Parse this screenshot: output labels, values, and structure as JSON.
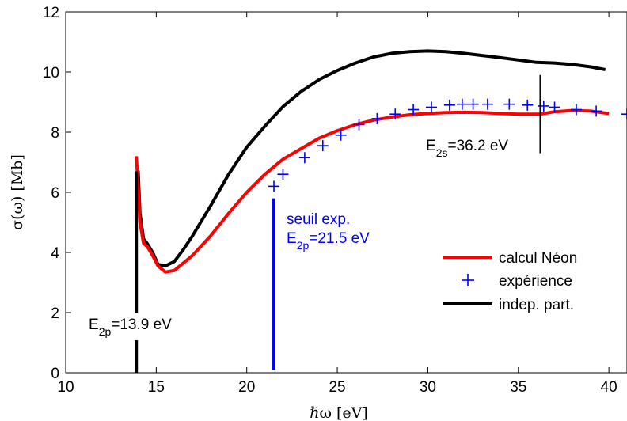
{
  "chart_data": {
    "type": "line",
    "title": "",
    "xlabel": "ℏω [eV]",
    "ylabel": "σ(ω) [Mb]",
    "xlim": [
      10,
      41
    ],
    "ylim": [
      0,
      12
    ],
    "xticks": [
      10,
      15,
      20,
      25,
      30,
      35,
      40
    ],
    "yticks": [
      0,
      2,
      4,
      6,
      8,
      10,
      12
    ],
    "grid": false,
    "legend_position": "right",
    "series": [
      {
        "name": "calcul Néon",
        "style": "line",
        "color": "#ff0000",
        "x": [
          13.9,
          14.0,
          14.1,
          14.3,
          14.5,
          14.8,
          15.1,
          15.5,
          16.0,
          17.0,
          18.0,
          19.0,
          20.0,
          21.0,
          22.0,
          23.0,
          24.0,
          25.0,
          26.0,
          27.0,
          28.0,
          29.0,
          30.0,
          31.0,
          32.0,
          33.0,
          34.0,
          35.0,
          36.2,
          37.0,
          38.0,
          39.0,
          40.0
        ],
        "y": [
          7.2,
          6.2,
          5.0,
          4.3,
          4.2,
          3.9,
          3.55,
          3.35,
          3.4,
          3.9,
          4.55,
          5.3,
          6.0,
          6.6,
          7.1,
          7.45,
          7.8,
          8.05,
          8.25,
          8.4,
          8.5,
          8.58,
          8.62,
          8.65,
          8.66,
          8.65,
          8.62,
          8.6,
          8.6,
          8.68,
          8.72,
          8.7,
          8.62
        ]
      },
      {
        "name": "expérience",
        "style": "marker",
        "marker": "+",
        "color": "#0000ff",
        "x": [
          21.5,
          22.0,
          23.2,
          24.2,
          25.2,
          26.2,
          27.2,
          28.2,
          29.2,
          30.2,
          31.2,
          31.9,
          32.5,
          33.3,
          34.5,
          35.5,
          36.4,
          37.0,
          38.2,
          39.3,
          41.0
        ],
        "y": [
          6.2,
          6.6,
          7.15,
          7.55,
          7.9,
          8.25,
          8.45,
          8.6,
          8.75,
          8.83,
          8.9,
          8.93,
          8.93,
          8.93,
          8.93,
          8.9,
          8.87,
          8.83,
          8.75,
          8.7,
          8.6
        ]
      },
      {
        "name": "indep. part.",
        "style": "line",
        "color": "#000000",
        "x": [
          13.9,
          14.0,
          14.1,
          14.3,
          14.5,
          14.8,
          15.1,
          15.5,
          16.0,
          16.5,
          17.0,
          18.0,
          19.0,
          20.0,
          21.0,
          22.0,
          23.0,
          24.0,
          25.0,
          26.0,
          27.0,
          28.0,
          29.0,
          30.0,
          31.0,
          32.0,
          33.0,
          34.0,
          35.0,
          36.0,
          37.0,
          38.0,
          39.0,
          39.8
        ],
        "y": [
          6.0,
          6.7,
          5.3,
          4.45,
          4.3,
          4.0,
          3.6,
          3.55,
          3.7,
          4.1,
          4.55,
          5.55,
          6.6,
          7.5,
          8.2,
          8.85,
          9.35,
          9.75,
          10.05,
          10.3,
          10.5,
          10.62,
          10.68,
          10.7,
          10.68,
          10.62,
          10.55,
          10.48,
          10.4,
          10.32,
          10.3,
          10.25,
          10.17,
          10.08
        ]
      }
    ],
    "annotations": [
      {
        "id": "e2p-calc",
        "lines": [
          "E",
          "2p",
          "=13.9 eV"
        ],
        "color": "#000000",
        "x": 13.9,
        "y_from": 0,
        "y_to": 6.7
      },
      {
        "id": "seuil",
        "text": "seuil exp.",
        "lines": [
          "E",
          "2p",
          "=21.5 eV"
        ],
        "color": "#0000ff",
        "x": 21.5,
        "y_from": 0.1,
        "y_to": 5.8
      },
      {
        "id": "e2s",
        "lines": [
          "E",
          "2s",
          "=36.2 eV"
        ],
        "color": "#000000",
        "x": 36.2,
        "y_from": 7.3,
        "y_to": 9.9
      }
    ]
  }
}
